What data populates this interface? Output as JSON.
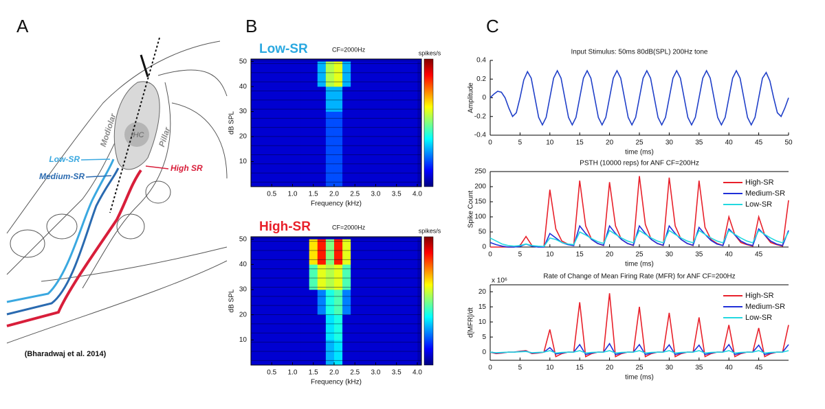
{
  "panel_labels": [
    "A",
    "B",
    "C"
  ],
  "diagram": {
    "ihc": "IHC",
    "modiolar": "Modiolar",
    "pillar": "Pillar",
    "low": "Low-SR",
    "medium": "Medium-SR",
    "high": "High SR",
    "citation": "(Bharadwaj et al. 2014)"
  },
  "chart_data": [
    {
      "type": "heatmap",
      "title": "Low-SR",
      "title_color": "#2aa8e0",
      "annotation": "CF=2000Hz",
      "colorbar_label": "spikes/s",
      "xlabel": "Frequency (kHz)",
      "ylabel": "dB SPL",
      "x": [
        0.1,
        0.3,
        0.5,
        0.7,
        0.9,
        1.1,
        1.3,
        1.5,
        1.7,
        1.9,
        2.1,
        2.3,
        2.5,
        2.7,
        2.9,
        3.1,
        3.3,
        3.5,
        3.7,
        3.9
      ],
      "y": [
        5,
        15,
        25,
        35,
        45
      ],
      "values": [
        [
          0.08,
          0.08,
          0.08,
          0.08,
          0.08,
          0.08,
          0.08,
          0.08,
          0.08,
          0.2,
          0.2,
          0.08,
          0.08,
          0.08,
          0.08,
          0.08,
          0.08,
          0.08,
          0.08,
          0.08
        ],
        [
          0.08,
          0.08,
          0.08,
          0.08,
          0.08,
          0.08,
          0.08,
          0.08,
          0.08,
          0.2,
          0.2,
          0.08,
          0.08,
          0.08,
          0.08,
          0.08,
          0.08,
          0.08,
          0.08,
          0.08
        ],
        [
          0.08,
          0.08,
          0.08,
          0.08,
          0.08,
          0.08,
          0.08,
          0.08,
          0.08,
          0.2,
          0.2,
          0.08,
          0.08,
          0.08,
          0.08,
          0.08,
          0.08,
          0.08,
          0.08,
          0.08
        ],
        [
          0.08,
          0.08,
          0.08,
          0.08,
          0.08,
          0.08,
          0.08,
          0.08,
          0.08,
          0.3,
          0.3,
          0.08,
          0.08,
          0.08,
          0.08,
          0.08,
          0.08,
          0.08,
          0.08,
          0.08
        ],
        [
          0.08,
          0.08,
          0.08,
          0.08,
          0.08,
          0.08,
          0.08,
          0.08,
          0.3,
          0.55,
          0.6,
          0.3,
          0.08,
          0.08,
          0.08,
          0.08,
          0.08,
          0.08,
          0.08,
          0.08
        ]
      ],
      "xlim": [
        0,
        4.1
      ],
      "ylim": [
        0,
        51
      ],
      "xticks": [
        0.5,
        {
          "value": 1,
          "label": "1.0"
        },
        1.5,
        {
          "value": 2,
          "label": "2.0"
        },
        2.5,
        {
          "value": 3,
          "label": "3.0"
        },
        3.5,
        {
          "value": 4,
          "label": "4.0"
        }
      ],
      "yticks": [
        10,
        20,
        30,
        40,
        50
      ]
    },
    {
      "type": "heatmap",
      "title": "High-SR",
      "title_color": "#e8202a",
      "annotation": "CF=2000Hz",
      "colorbar_label": "spikes/s",
      "xlabel": "Frequency (kHz)",
      "ylabel": "dB SPL",
      "x": [
        0.1,
        0.3,
        0.5,
        0.7,
        0.9,
        1.1,
        1.3,
        1.5,
        1.7,
        1.9,
        2.1,
        2.3,
        2.5,
        2.7,
        2.9,
        3.1,
        3.3,
        3.5,
        3.7,
        3.9
      ],
      "y": [
        5,
        15,
        25,
        35,
        45
      ],
      "values": [
        [
          0.08,
          0.08,
          0.08,
          0.08,
          0.08,
          0.08,
          0.08,
          0.08,
          0.08,
          0.3,
          0.35,
          0.08,
          0.08,
          0.08,
          0.08,
          0.08,
          0.08,
          0.08,
          0.08,
          0.08
        ],
        [
          0.08,
          0.08,
          0.08,
          0.08,
          0.08,
          0.08,
          0.08,
          0.08,
          0.08,
          0.35,
          0.4,
          0.08,
          0.08,
          0.08,
          0.08,
          0.08,
          0.08,
          0.08,
          0.08,
          0.08
        ],
        [
          0.08,
          0.08,
          0.08,
          0.08,
          0.08,
          0.08,
          0.08,
          0.08,
          0.25,
          0.4,
          0.45,
          0.25,
          0.08,
          0.08,
          0.08,
          0.08,
          0.08,
          0.08,
          0.08,
          0.08
        ],
        [
          0.08,
          0.08,
          0.08,
          0.08,
          0.08,
          0.08,
          0.08,
          0.45,
          0.6,
          0.55,
          0.6,
          0.45,
          0.08,
          0.08,
          0.08,
          0.08,
          0.08,
          0.08,
          0.08,
          0.08
        ],
        [
          0.08,
          0.08,
          0.08,
          0.08,
          0.08,
          0.08,
          0.08,
          0.65,
          0.85,
          0.5,
          0.85,
          0.6,
          0.08,
          0.08,
          0.08,
          0.08,
          0.08,
          0.08,
          0.08,
          0.08
        ]
      ],
      "xlim": [
        0,
        4.1
      ],
      "ylim": [
        0,
        51
      ],
      "xticks": [
        0.5,
        {
          "value": 1,
          "label": "1.0"
        },
        1.5,
        {
          "value": 2,
          "label": "2.0"
        },
        2.5,
        {
          "value": 3,
          "label": "3.0"
        },
        3.5,
        {
          "value": 4,
          "label": "4.0"
        }
      ],
      "yticks": [
        10,
        20,
        30,
        40,
        50
      ]
    },
    {
      "type": "line",
      "title": "Input Stimulus: 50ms 80dB(SPL) 200Hz tone",
      "xlabel": "time (ms)",
      "ylabel": "Amplitude",
      "x": [
        0,
        0.625,
        1.25,
        1.875,
        2.5,
        3.125,
        3.75,
        4.375,
        5,
        5.625,
        6.25,
        6.875,
        7.5,
        8.125,
        8.75,
        9.375,
        10,
        10.625,
        11.25,
        11.875,
        12.5,
        13.125,
        13.75,
        14.375,
        15,
        15.625,
        16.25,
        16.875,
        17.5,
        18.125,
        18.75,
        19.375,
        20,
        20.625,
        21.25,
        21.875,
        22.5,
        23.125,
        23.75,
        24.375,
        25,
        25.625,
        26.25,
        26.875,
        27.5,
        28.125,
        28.75,
        29.375,
        30,
        30.625,
        31.25,
        31.875,
        32.5,
        33.125,
        33.75,
        34.375,
        35,
        35.625,
        36.25,
        36.875,
        37.5,
        38.125,
        38.75,
        39.375,
        40,
        40.625,
        41.25,
        41.875,
        42.5,
        43.125,
        43.75,
        44.375,
        45,
        45.625,
        46.25,
        46.875,
        47.5,
        48.125,
        48.75,
        49.375,
        50
      ],
      "series": [
        {
          "color": "#1f3fc8",
          "values": [
            0,
            0.04,
            0.07,
            0.06,
            0,
            -0.11,
            -0.2,
            -0.16,
            0,
            0.19,
            0.28,
            0.21,
            0,
            -0.21,
            -0.29,
            -0.21,
            0,
            0.21,
            0.29,
            0.21,
            0,
            -0.21,
            -0.29,
            -0.21,
            0,
            0.21,
            0.29,
            0.21,
            0,
            -0.21,
            -0.29,
            -0.21,
            0,
            0.21,
            0.29,
            0.21,
            0,
            -0.21,
            -0.29,
            -0.21,
            0,
            0.21,
            0.29,
            0.21,
            0,
            -0.21,
            -0.29,
            -0.21,
            0,
            0.21,
            0.29,
            0.21,
            0,
            -0.21,
            -0.29,
            -0.21,
            0,
            0.21,
            0.29,
            0.21,
            0,
            -0.21,
            -0.29,
            -0.21,
            0,
            0.21,
            0.29,
            0.21,
            0,
            -0.21,
            -0.29,
            -0.21,
            0,
            0.21,
            0.27,
            0.18,
            0,
            -0.16,
            -0.2,
            -0.11,
            0
          ]
        }
      ],
      "xlim": [
        0,
        50
      ],
      "ylim": [
        -0.4,
        0.4
      ],
      "xticks": [
        0,
        5,
        10,
        15,
        20,
        25,
        30,
        35,
        40,
        45,
        50
      ],
      "yticks": [
        -0.4,
        -0.2,
        0,
        0.2,
        0.4
      ],
      "frame": false
    },
    {
      "type": "line",
      "title": "PSTH (10000 reps) for ANF CF=200Hz",
      "xlabel": "time (ms)",
      "ylabel": "Spike Count",
      "x": [
        0,
        1,
        2,
        3,
        4,
        5,
        6,
        7,
        8,
        9,
        10,
        11,
        12,
        13,
        14,
        15,
        16,
        17,
        18,
        19,
        20,
        21,
        22,
        23,
        24,
        25,
        26,
        27,
        28,
        29,
        30,
        31,
        32,
        33,
        34,
        35,
        36,
        37,
        38,
        39,
        40,
        41,
        42,
        43,
        44,
        45,
        46,
        47,
        48,
        49,
        50
      ],
      "series": [
        {
          "name": "High-SR",
          "color": "#e8202a",
          "values": [
            0,
            0,
            0,
            0,
            0,
            5,
            35,
            5,
            0,
            0,
            190,
            60,
            20,
            10,
            5,
            220,
            70,
            25,
            12,
            5,
            215,
            70,
            25,
            12,
            5,
            235,
            75,
            25,
            12,
            5,
            230,
            70,
            25,
            12,
            5,
            220,
            65,
            25,
            12,
            5,
            100,
            40,
            15,
            8,
            3,
            100,
            40,
            15,
            8,
            3,
            155
          ]
        },
        {
          "name": "Medium-SR",
          "color": "#1f2fd8",
          "values": [
            15,
            8,
            3,
            0,
            0,
            2,
            10,
            3,
            0,
            0,
            45,
            30,
            15,
            8,
            5,
            70,
            45,
            25,
            12,
            6,
            70,
            45,
            25,
            12,
            6,
            70,
            45,
            25,
            12,
            6,
            70,
            45,
            25,
            12,
            6,
            65,
            42,
            22,
            10,
            5,
            60,
            40,
            20,
            10,
            5,
            60,
            40,
            20,
            10,
            5,
            55
          ]
        },
        {
          "name": "Low-SR",
          "color": "#22d8e0",
          "values": [
            30,
            20,
            10,
            5,
            3,
            5,
            10,
            5,
            3,
            2,
            30,
            25,
            15,
            10,
            8,
            50,
            40,
            28,
            18,
            12,
            55,
            42,
            30,
            20,
            14,
            55,
            42,
            30,
            20,
            14,
            55,
            42,
            30,
            20,
            14,
            55,
            42,
            30,
            20,
            14,
            55,
            42,
            30,
            20,
            14,
            55,
            42,
            30,
            20,
            14,
            50
          ]
        }
      ],
      "xlim": [
        0,
        50
      ],
      "ylim": [
        0,
        250
      ],
      "xticks": [
        0,
        5,
        10,
        15,
        20,
        25,
        30,
        35,
        40,
        45
      ],
      "yticks": [
        0,
        50,
        100,
        150,
        200,
        250
      ],
      "frame": true
    },
    {
      "type": "line",
      "title": "Rate of Change of Mean Firing Rate (MFR) for ANF CF=200Hz",
      "xlabel": "time (ms)",
      "ylabel": "d[MFR]/dt",
      "exponent": "x 10⁶",
      "x": [
        0,
        1,
        2,
        3,
        4,
        5,
        6,
        7,
        8,
        9,
        10,
        11,
        12,
        13,
        14,
        15,
        16,
        17,
        18,
        19,
        20,
        21,
        22,
        23,
        24,
        25,
        26,
        27,
        28,
        29,
        30,
        31,
        32,
        33,
        34,
        35,
        36,
        37,
        38,
        39,
        40,
        41,
        42,
        43,
        44,
        45,
        46,
        47,
        48,
        49,
        50
      ],
      "series": [
        {
          "name": "High-SR",
          "color": "#e8202a",
          "values": [
            0,
            -0.5,
            -0.3,
            0,
            0,
            0.3,
            0.5,
            -0.5,
            -0.3,
            0,
            7.5,
            -1.5,
            -0.5,
            0,
            0,
            16.5,
            -1.5,
            -0.5,
            0,
            0,
            19.5,
            -1.5,
            -0.5,
            0,
            0,
            15,
            -1.5,
            -0.5,
            0,
            0,
            13,
            -1.5,
            -0.5,
            0,
            0,
            11.5,
            -1.5,
            -0.5,
            0,
            0,
            9,
            -1.5,
            -0.5,
            0,
            0,
            8,
            -1.5,
            -0.5,
            0,
            0,
            9
          ]
        },
        {
          "name": "Medium-SR",
          "color": "#1f2fd8",
          "values": [
            0,
            -0.3,
            -0.2,
            0,
            0,
            0.2,
            0.3,
            -0.3,
            -0.2,
            0,
            1.5,
            -0.6,
            -0.3,
            0,
            0,
            2.5,
            -0.8,
            -0.3,
            0,
            0,
            2.8,
            -0.8,
            -0.3,
            0,
            0,
            2.5,
            -0.8,
            -0.3,
            0,
            0,
            2.4,
            -0.8,
            -0.3,
            0,
            0,
            2.3,
            -0.8,
            -0.3,
            0,
            0,
            2.5,
            -0.8,
            -0.3,
            0,
            0,
            2.3,
            -0.8,
            -0.3,
            0,
            0,
            2.5
          ]
        },
        {
          "name": "Low-SR",
          "color": "#22d8e0",
          "values": [
            0,
            -0.2,
            -0.1,
            0,
            0,
            0.1,
            0.2,
            -0.2,
            -0.1,
            0,
            0.5,
            -0.3,
            -0.1,
            0,
            0,
            0.5,
            -0.3,
            -0.1,
            0,
            0,
            0.5,
            -0.3,
            -0.1,
            0,
            0,
            0.5,
            -0.3,
            -0.1,
            0,
            0,
            0.5,
            -0.3,
            -0.1,
            0,
            0,
            0.5,
            -0.3,
            -0.1,
            0,
            0,
            0.5,
            -0.3,
            -0.1,
            0,
            0,
            0.5,
            -0.3,
            -0.1,
            0,
            0,
            0.5
          ]
        }
      ],
      "xlim": [
        0,
        50
      ],
      "ylim": [
        -2.7,
        22.3
      ],
      "xticks": [
        0,
        5,
        10,
        15,
        20,
        25,
        30,
        35,
        40,
        45
      ],
      "yticks": [
        0,
        5,
        10,
        15,
        20
      ],
      "frame": true
    }
  ]
}
